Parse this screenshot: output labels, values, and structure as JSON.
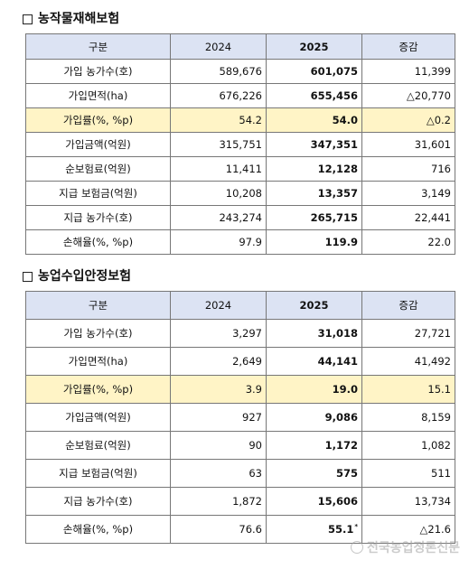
{
  "section1": {
    "title": "농작물재해보험",
    "headers": [
      "구분",
      "2024",
      "2025",
      "증감"
    ],
    "rows": [
      {
        "label": "가입 농가수(호)",
        "y2024": "589,676",
        "y2025": "601,075",
        "change": "11,399"
      },
      {
        "label": "가입면적(ha)",
        "y2024": "676,226",
        "y2025": "655,456",
        "change": "△20,770"
      },
      {
        "label": "가입률(%, %p)",
        "y2024": "54.2",
        "y2025": "54.0",
        "change": "△0.2"
      },
      {
        "label": "가입금액(억원)",
        "y2024": "315,751",
        "y2025": "347,351",
        "change": "31,601"
      },
      {
        "label": "순보험료(억원)",
        "y2024": "11,411",
        "y2025": "12,128",
        "change": "716"
      },
      {
        "label": "지급 보험금(억원)",
        "y2024": "10,208",
        "y2025": "13,357",
        "change": "3,149"
      },
      {
        "label": "지급 농가수(호)",
        "y2024": "243,274",
        "y2025": "265,715",
        "change": "22,441"
      },
      {
        "label": "손해율(%, %p)",
        "y2024": "97.9",
        "y2025": "119.9",
        "change": "22.0"
      }
    ]
  },
  "section2": {
    "title": "농업수입안정보험",
    "headers": [
      "구분",
      "2024",
      "2025",
      "증감"
    ],
    "rows": [
      {
        "label": "가입 농가수(호)",
        "y2024": "3,297",
        "y2025": "31,018",
        "change": "27,721"
      },
      {
        "label": "가입면적(ha)",
        "y2024": "2,649",
        "y2025": "44,141",
        "change": "41,492"
      },
      {
        "label": "가입률(%, %p)",
        "y2024": "3.9",
        "y2025": "19.0",
        "change": "15.1"
      },
      {
        "label": "가입금액(억원)",
        "y2024": "927",
        "y2025": "9,086",
        "change": "8,159"
      },
      {
        "label": "순보험료(억원)",
        "y2024": "90",
        "y2025": "1,172",
        "change": "1,082"
      },
      {
        "label": "지급 보험금(억원)",
        "y2024": "63",
        "y2025": "575",
        "change": "511"
      },
      {
        "label": "지급 농가수(호)",
        "y2024": "1,872",
        "y2025": "15,606",
        "change": "13,734"
      },
      {
        "label": "손해율(%, %p)",
        "y2024": "76.6",
        "y2025": "55.1",
        "change": "△21.6"
      }
    ],
    "footnote_mark": "*"
  },
  "watermark": "전국농업정론신문",
  "colors": {
    "header_bg": "#dce3f3",
    "highlight_bg": "#fff4c6"
  }
}
